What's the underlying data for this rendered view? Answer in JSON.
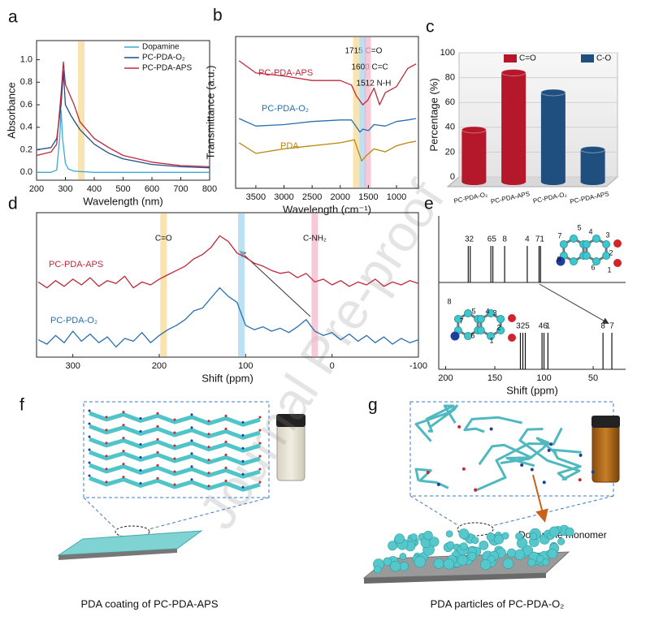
{
  "chart_data": [
    {
      "panel": "a",
      "type": "line",
      "frame": true,
      "xlabel": "Wavelength (nm)",
      "ylabel": "Absorbance",
      "xlim": [
        200,
        800
      ],
      "xticks": [
        200,
        300,
        400,
        500,
        600,
        700,
        800
      ],
      "ylim": [
        -0.07,
        1.17
      ],
      "yticks": [
        {
          "value": 0,
          "label": "0.0"
        },
        {
          "value": 0.2,
          "label": "0.2"
        },
        {
          "value": 0.4,
          "label": "0.4"
        },
        {
          "value": 0.6,
          "label": "0.6"
        },
        {
          "value": 0.8,
          "label": "0.8"
        },
        {
          "value": 1,
          "label": "1.0"
        }
      ],
      "legend": "upper right",
      "highlights": [
        {
          "x": 355,
          "color": "#f6d98f"
        }
      ],
      "series": [
        {
          "name": "Dopamine",
          "color": "#3aa8dc",
          "x": [
            200,
            250,
            270,
            280,
            285,
            290,
            300,
            310,
            330,
            400,
            500,
            600,
            700,
            800
          ],
          "values": [
            0.0,
            0.0,
            0.02,
            0.3,
            0.55,
            0.3,
            0.08,
            0.03,
            0.01,
            0.0,
            0.0,
            0.0,
            0.0,
            0.0
          ]
        },
        {
          "name": "PC-PDA-O₂",
          "color": "#1f4e8c",
          "x": [
            200,
            250,
            270,
            285,
            293,
            300,
            320,
            350,
            400,
            450,
            500,
            600,
            700,
            800
          ],
          "values": [
            0.2,
            0.22,
            0.3,
            0.6,
            0.9,
            0.6,
            0.5,
            0.38,
            0.25,
            0.17,
            0.12,
            0.07,
            0.05,
            0.04
          ]
        },
        {
          "name": "PC-PDA-APS",
          "color": "#c0283a",
          "x": [
            200,
            250,
            270,
            285,
            293,
            300,
            330,
            350,
            400,
            450,
            500,
            600,
            700,
            800
          ],
          "values": [
            0.15,
            0.18,
            0.25,
            0.7,
            0.98,
            0.78,
            0.6,
            0.45,
            0.3,
            0.22,
            0.15,
            0.09,
            0.06,
            0.05
          ]
        }
      ]
    },
    {
      "panel": "b",
      "type": "line",
      "frame": true,
      "xlabel": "Wavelength (cm⁻¹)",
      "ylabel": "Transmittance (a.u.)",
      "xlim": [
        3860,
        610
      ],
      "xticks": [
        3500,
        3000,
        2500,
        2000,
        1500,
        1000
      ],
      "ylim": [
        0,
        10
      ],
      "legend": "inline",
      "highlights": [
        {
          "x": 1715,
          "color": "#f6d98f",
          "label": "1715 C=O"
        },
        {
          "x": 1600,
          "color": "#9fd3f0",
          "label": "1600 C=C"
        },
        {
          "x": 1512,
          "color": "#f4b4c6",
          "label": "1512 N-H"
        }
      ],
      "series": [
        {
          "name": "PC-PDA-APS",
          "color": "#c0283a",
          "x": [
            3800,
            3500,
            3000,
            2500,
            2000,
            1800,
            1715,
            1600,
            1512,
            1400,
            1300,
            1200,
            1000,
            800,
            650
          ],
          "values": [
            8.4,
            7.6,
            7.4,
            7.1,
            7.1,
            6.8,
            6.1,
            5.5,
            5.8,
            6.6,
            5.5,
            6.3,
            6.7,
            7.9,
            8.2
          ]
        },
        {
          "name": "PC-PDA-O₂",
          "color": "#2a6fae",
          "x": [
            3800,
            3500,
            3000,
            2500,
            2000,
            1800,
            1650,
            1600,
            1500,
            1400,
            1200,
            1000,
            800,
            650
          ],
          "values": [
            4.6,
            4.1,
            4.2,
            4.4,
            4.5,
            4.5,
            3.7,
            3.9,
            3.8,
            4.2,
            4.1,
            4.4,
            4.5,
            4.6
          ]
        },
        {
          "name": "PDA",
          "color": "#b8860b",
          "x": [
            3800,
            3500,
            3000,
            2500,
            2000,
            1750,
            1620,
            1550,
            1400,
            1200,
            1000,
            800,
            650
          ],
          "values": [
            3.0,
            2.3,
            2.6,
            2.8,
            3.0,
            3.2,
            1.8,
            2.1,
            2.6,
            2.4,
            2.8,
            3.0,
            3.1
          ]
        }
      ]
    },
    {
      "panel": "c",
      "type": "bar",
      "ylabel": "Percentage (%)",
      "categories": [
        "PC-PDA-O₂",
        "PC-PDA-APS",
        "PC-PDA-O₂",
        "PC-PDA-APS"
      ],
      "ylim": [
        0,
        100
      ],
      "yticks": [
        0,
        20,
        40,
        60,
        80,
        100
      ],
      "grid": true,
      "series": [
        {
          "name": "C=O",
          "color": "#b5172b",
          "values": [
            38,
            84,
            null,
            null
          ]
        },
        {
          "name": "C-O",
          "color": "#1f4f7f",
          "values": [
            null,
            null,
            68,
            22
          ]
        }
      ]
    },
    {
      "panel": "d",
      "type": "line",
      "frame": true,
      "xlabel": "Shift (ppm)",
      "xlim": [
        342,
        -100
      ],
      "xticks": [
        300,
        200,
        100,
        0,
        -100
      ],
      "ylim": [
        0,
        10
      ],
      "legend": "inline",
      "highlights": [
        {
          "x": 195,
          "color": "#f6d98f",
          "label": "C=O"
        },
        {
          "x": 105,
          "color": "#9fd3f0"
        },
        {
          "x": 20,
          "color": "#f4b4c6",
          "label": "C-NH₂"
        }
      ],
      "series": [
        {
          "name": "PC-PDA-APS",
          "color": "#c0283a",
          "x": [
            340,
            330,
            320,
            310,
            300,
            290,
            280,
            270,
            260,
            250,
            240,
            230,
            220,
            210,
            200,
            190,
            180,
            170,
            160,
            150,
            140,
            130,
            120,
            110,
            100,
            90,
            80,
            70,
            60,
            50,
            40,
            30,
            20,
            10,
            0,
            -10,
            -20,
            -30,
            -40,
            -50,
            -60,
            -70,
            -80,
            -90,
            -100
          ],
          "values": [
            5.2,
            4.8,
            5.3,
            4.9,
            5.4,
            5.0,
            5.5,
            4.9,
            5.3,
            5.1,
            5.6,
            4.8,
            5.2,
            5.0,
            5.4,
            5.7,
            6.0,
            6.3,
            6.8,
            7.1,
            7.6,
            8.4,
            8.0,
            7.2,
            6.9,
            6.5,
            6.3,
            6.0,
            5.8,
            5.9,
            5.5,
            5.8,
            5.2,
            5.4,
            5.0,
            5.3,
            4.9,
            5.2,
            5.0,
            5.4,
            4.9,
            5.2,
            5.0,
            5.3,
            5.1
          ]
        },
        {
          "name": "PC-PDA-O₂",
          "color": "#2a6fae",
          "x": [
            340,
            330,
            320,
            310,
            300,
            290,
            280,
            270,
            260,
            250,
            240,
            230,
            220,
            210,
            200,
            190,
            180,
            170,
            160,
            150,
            140,
            130,
            120,
            110,
            100,
            90,
            80,
            70,
            60,
            50,
            40,
            30,
            20,
            10,
            0,
            -10,
            -20,
            -30,
            -40,
            -50,
            -60,
            -70,
            -80,
            -90,
            -100
          ],
          "values": [
            1.2,
            0.9,
            1.5,
            1.0,
            1.8,
            1.1,
            1.6,
            1.0,
            1.4,
            0.7,
            1.3,
            1.1,
            1.7,
            1.0,
            1.5,
            1.9,
            2.2,
            2.6,
            3.2,
            3.4,
            4.1,
            4.8,
            4.2,
            3.8,
            2.2,
            1.9,
            2.1,
            1.8,
            2.0,
            1.7,
            2.1,
            2.6,
            1.8,
            1.5,
            1.7,
            1.2,
            1.6,
            1.1,
            1.5,
            1.0,
            1.4,
            0.9,
            1.3,
            1.0,
            1.2
          ]
        }
      ]
    },
    {
      "panel": "e",
      "type": "stick",
      "xlabel": "Shift (ppm)",
      "xlim": [
        207,
        17
      ],
      "xticks": [
        200,
        150,
        100,
        50
      ],
      "spectra": [
        {
          "groups": [
            {
              "label": "32",
              "x": [
                177,
                175
              ]
            },
            {
              "label": "65",
              "x": [
                154,
                152
              ]
            },
            {
              "label": "8",
              "x": [
                140
              ]
            },
            {
              "label": "4",
              "x": [
                117
              ]
            },
            {
              "label": "71",
              "x": [
                105,
                103.5
              ]
            }
          ],
          "atom_labels": [
            "7",
            "5",
            "4",
            "3",
            "2",
            "8",
            "6",
            "1"
          ]
        },
        {
          "groups": [
            {
              "label": "325",
              "x": [
                124,
                121.5,
                119
              ]
            },
            {
              "label": "46",
              "x": [
                102,
                100
              ]
            },
            {
              "label": "1",
              "x": [
                96
              ]
            },
            {
              "label": "8",
              "x": [
                40
              ]
            },
            {
              "label": "7",
              "x": [
                31
              ]
            }
          ],
          "atom_labels": [
            "8",
            "7",
            "5",
            "4",
            "3",
            "2",
            "6",
            "1"
          ]
        }
      ]
    }
  ],
  "illustrations": {
    "f": {
      "panel": "f",
      "caption": "PDA coating of PC-PDA-APS"
    },
    "g": {
      "panel": "g",
      "caption": "PDA particles of PC-PDA-O₂",
      "annotation": "Dopamine monomer"
    }
  },
  "watermark": "Journal Pre-proof"
}
